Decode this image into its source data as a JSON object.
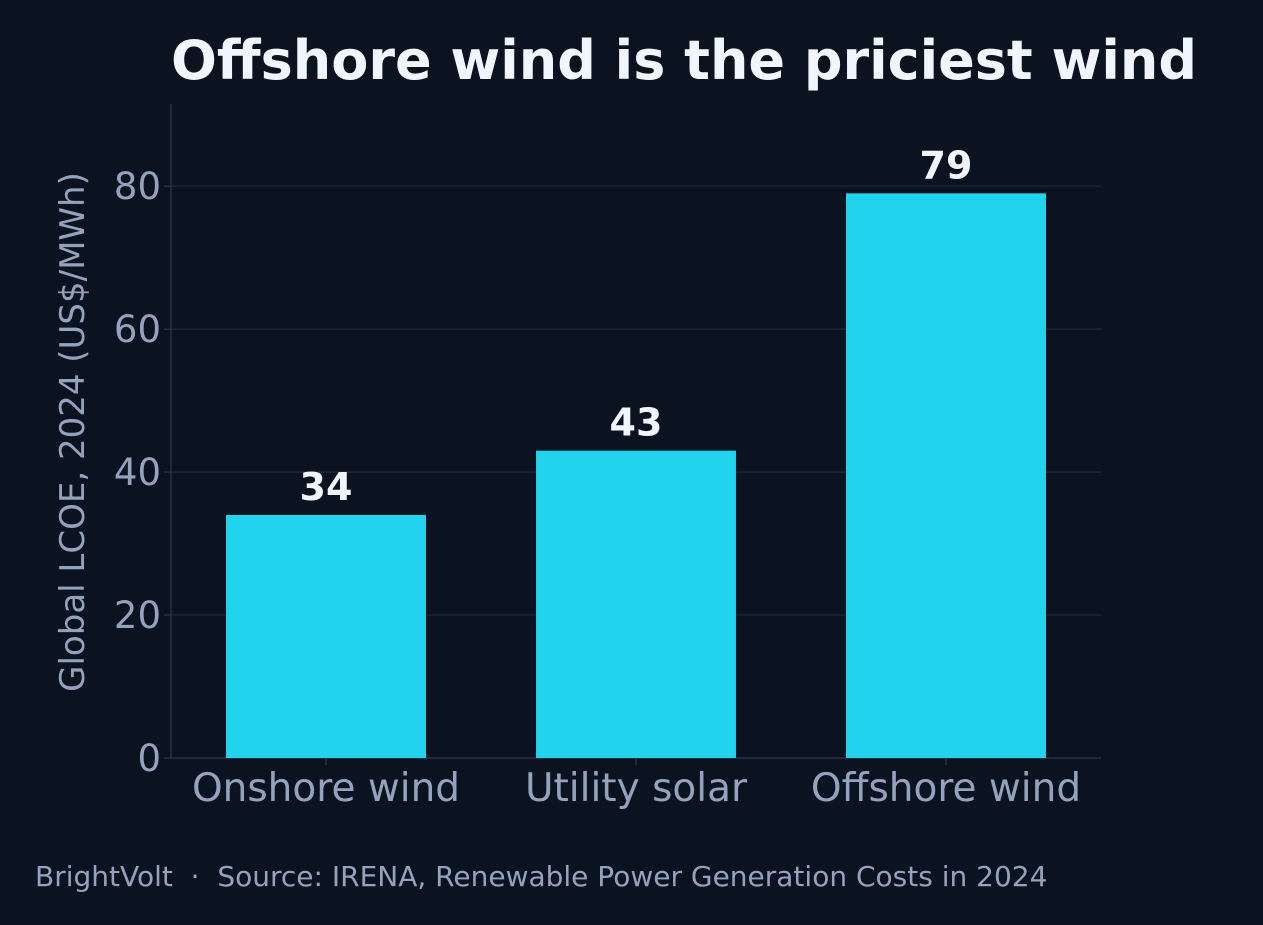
{
  "chart_data": {
    "type": "bar",
    "title": "Offshore wind is the priciest wind",
    "ylabel": "Global LCOE, 2024 (US$/MWh)",
    "xlabel": "",
    "categories": [
      "Onshore wind",
      "Utility solar",
      "Offshore wind"
    ],
    "values": [
      34,
      43,
      79
    ],
    "value_labels": [
      "34",
      "43",
      "79"
    ],
    "ylim": [
      0,
      91.5
    ],
    "yticks": [
      0,
      20,
      40,
      60,
      80
    ],
    "ytick_labels": [
      "0",
      "20",
      "40",
      "60",
      "80"
    ],
    "grid": true,
    "bar_color": "#22d3ee"
  },
  "colors": {
    "background": "#0b1320",
    "grid": "#1e2b3f",
    "axis": "#2a3950",
    "muted_text": "#94a3bd",
    "title_text": "#f1f5ff"
  },
  "footer": {
    "text": "BrightVolt  ·  Source: IRENA, Renewable Power Generation Costs in 2024"
  }
}
